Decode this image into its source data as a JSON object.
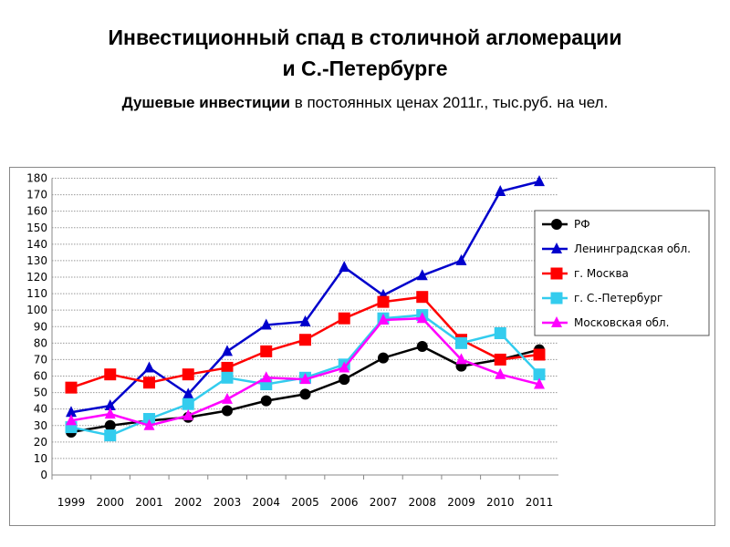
{
  "title_line1": "Инвестиционный спад в столичной агломерации",
  "title_line2": "и С.-Петербурге",
  "subtitle_bold": "Душевые инвестиции",
  "subtitle_rest": " в постоянных ценах 2011г., тыс.руб. на чел.",
  "chart_data": {
    "type": "line",
    "title": "Инвестиционный спад в столичной агломерации и С.-Петербурге",
    "ylabel": "тыс.руб. на чел.",
    "xlabel": "",
    "ylim": [
      0,
      180
    ],
    "yticks": [
      0,
      10,
      20,
      30,
      40,
      50,
      60,
      70,
      80,
      90,
      100,
      110,
      120,
      130,
      140,
      150,
      160,
      170,
      180
    ],
    "grid": true,
    "legend_position": "right",
    "categories": [
      "1999",
      "2000",
      "2001",
      "2002",
      "2003",
      "2004",
      "2005",
      "2006",
      "2007",
      "2008",
      "2009",
      "2010",
      "2011"
    ],
    "series": [
      {
        "name": "РФ",
        "color": "#000000",
        "marker": "circle",
        "values": [
          26,
          30,
          33,
          35,
          39,
          45,
          49,
          58,
          71,
          78,
          66,
          70,
          76
        ]
      },
      {
        "name": "Ленинградская обл.",
        "color": "#0000cc",
        "marker": "triangle",
        "values": [
          38,
          42,
          65,
          49,
          75,
          91,
          93,
          126,
          109,
          121,
          130,
          172,
          178
        ]
      },
      {
        "name": "г. Москва",
        "color": "#ff0000",
        "marker": "square",
        "values": [
          53,
          61,
          56,
          61,
          65,
          75,
          82,
          95,
          105,
          108,
          82,
          70,
          73
        ]
      },
      {
        "name": "г. С.-Петербург",
        "color": "#33ccee",
        "marker": "square",
        "values": [
          29,
          24,
          34,
          43,
          59,
          55,
          59,
          67,
          95,
          97,
          80,
          86,
          61
        ]
      },
      {
        "name": "Московская обл.",
        "color": "#ff00ff",
        "marker": "triangle",
        "values": [
          33,
          37,
          30,
          36,
          46,
          59,
          58,
          65,
          94,
          95,
          70,
          61,
          55
        ]
      }
    ]
  }
}
